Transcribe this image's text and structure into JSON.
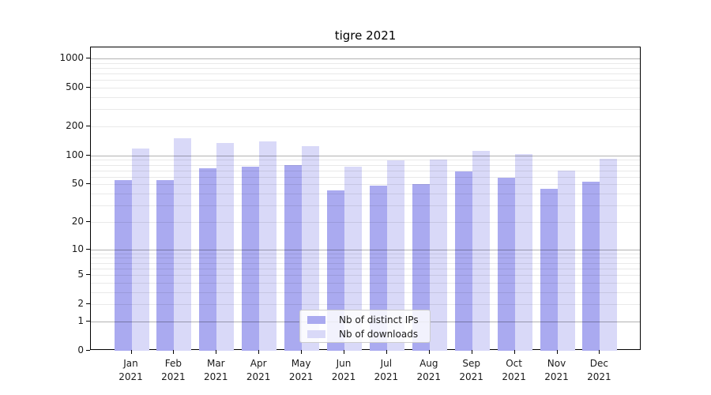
{
  "title": "tigre 2021",
  "colors": {
    "bar_distinct_ips": "#aaaaf0",
    "bar_downloads": "#d9d9f8",
    "grid_major": "#b3b3b3",
    "grid_minor": "#e8e8e8",
    "axis": "#000000",
    "legend_border": "#cccccc"
  },
  "legend": {
    "items": [
      {
        "label": "Nb of distinct IPs",
        "color": "#aaaaf0"
      },
      {
        "label": "Nb of downloads",
        "color": "#d9d9f8"
      }
    ]
  },
  "y_axis": {
    "tick_labels": [
      "0",
      "1",
      "2",
      "5",
      "10",
      "20",
      "50",
      "100",
      "200",
      "500",
      "1000"
    ]
  },
  "x_axis": {
    "year": "2021",
    "months": [
      "Jan",
      "Feb",
      "Mar",
      "Apr",
      "May",
      "Jun",
      "Jul",
      "Aug",
      "Sep",
      "Oct",
      "Nov",
      "Dec"
    ]
  },
  "chart_data": {
    "type": "bar",
    "title": "tigre 2021",
    "categories": [
      "Jan 2021",
      "Feb 2021",
      "Mar 2021",
      "Apr 2021",
      "May 2021",
      "Jun 2021",
      "Jul 2021",
      "Aug 2021",
      "Sep 2021",
      "Oct 2021",
      "Nov 2021",
      "Dec 2021"
    ],
    "series": [
      {
        "name": "Nb of distinct IPs",
        "color": "#aaaaf0",
        "values": [
          55,
          55,
          74,
          76,
          79,
          43,
          49,
          50,
          69,
          59,
          45,
          53
        ]
      },
      {
        "name": "Nb of downloads",
        "color": "#d9d9f8",
        "values": [
          118,
          151,
          135,
          141,
          126,
          76,
          89,
          91,
          112,
          104,
          70,
          92
        ]
      }
    ],
    "xlabel": "",
    "ylabel": "",
    "yscale": "log1p",
    "yticks": [
      0,
      1,
      2,
      5,
      10,
      20,
      50,
      100,
      200,
      500,
      1000
    ],
    "ylim": [
      0,
      1300
    ],
    "grid": true,
    "legend_position": "lower center"
  }
}
